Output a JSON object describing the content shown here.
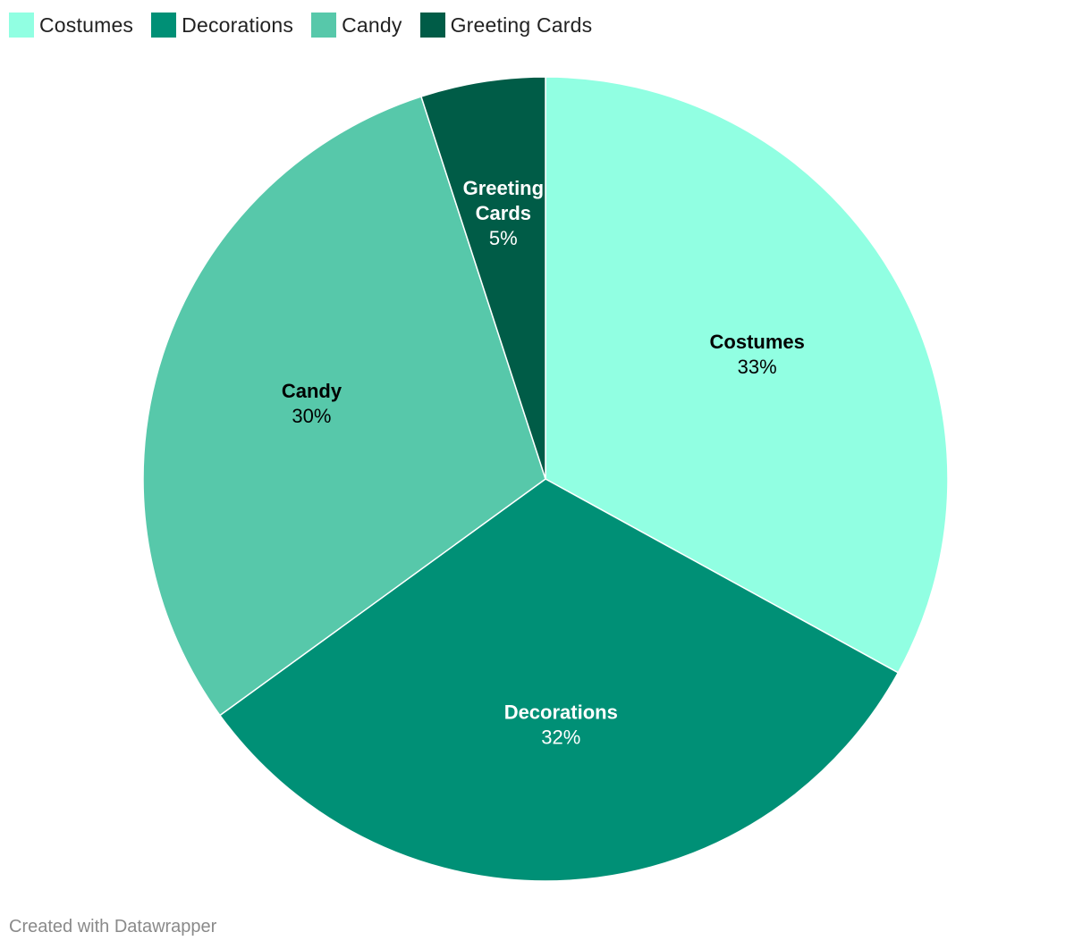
{
  "chart_data": {
    "type": "pie",
    "categories": [
      "Costumes",
      "Decorations",
      "Candy",
      "Greeting Cards"
    ],
    "values": [
      33,
      32,
      30,
      5
    ],
    "unit": "%",
    "colors": [
      "#91ffe2",
      "#009076",
      "#57c8aa",
      "#005c47"
    ],
    "label_text_colors": [
      "#000000",
      "#ffffff",
      "#000000",
      "#ffffff"
    ],
    "legend_position": "top-left",
    "slice_labels": [
      {
        "name_lines": [
          "Costumes"
        ],
        "value_text": "33%"
      },
      {
        "name_lines": [
          "Decorations"
        ],
        "value_text": "32%"
      },
      {
        "name_lines": [
          "Candy"
        ],
        "value_text": "30%"
      },
      {
        "name_lines": [
          "Greeting",
          "Cards"
        ],
        "value_text": "5%"
      }
    ]
  },
  "legend": {
    "items": [
      {
        "label": "Costumes",
        "color": "#91ffe2"
      },
      {
        "label": "Decorations",
        "color": "#009076"
      },
      {
        "label": "Candy",
        "color": "#57c8aa"
      },
      {
        "label": "Greeting Cards",
        "color": "#005c47"
      }
    ]
  },
  "footer": {
    "credit": "Created with Datawrapper"
  }
}
